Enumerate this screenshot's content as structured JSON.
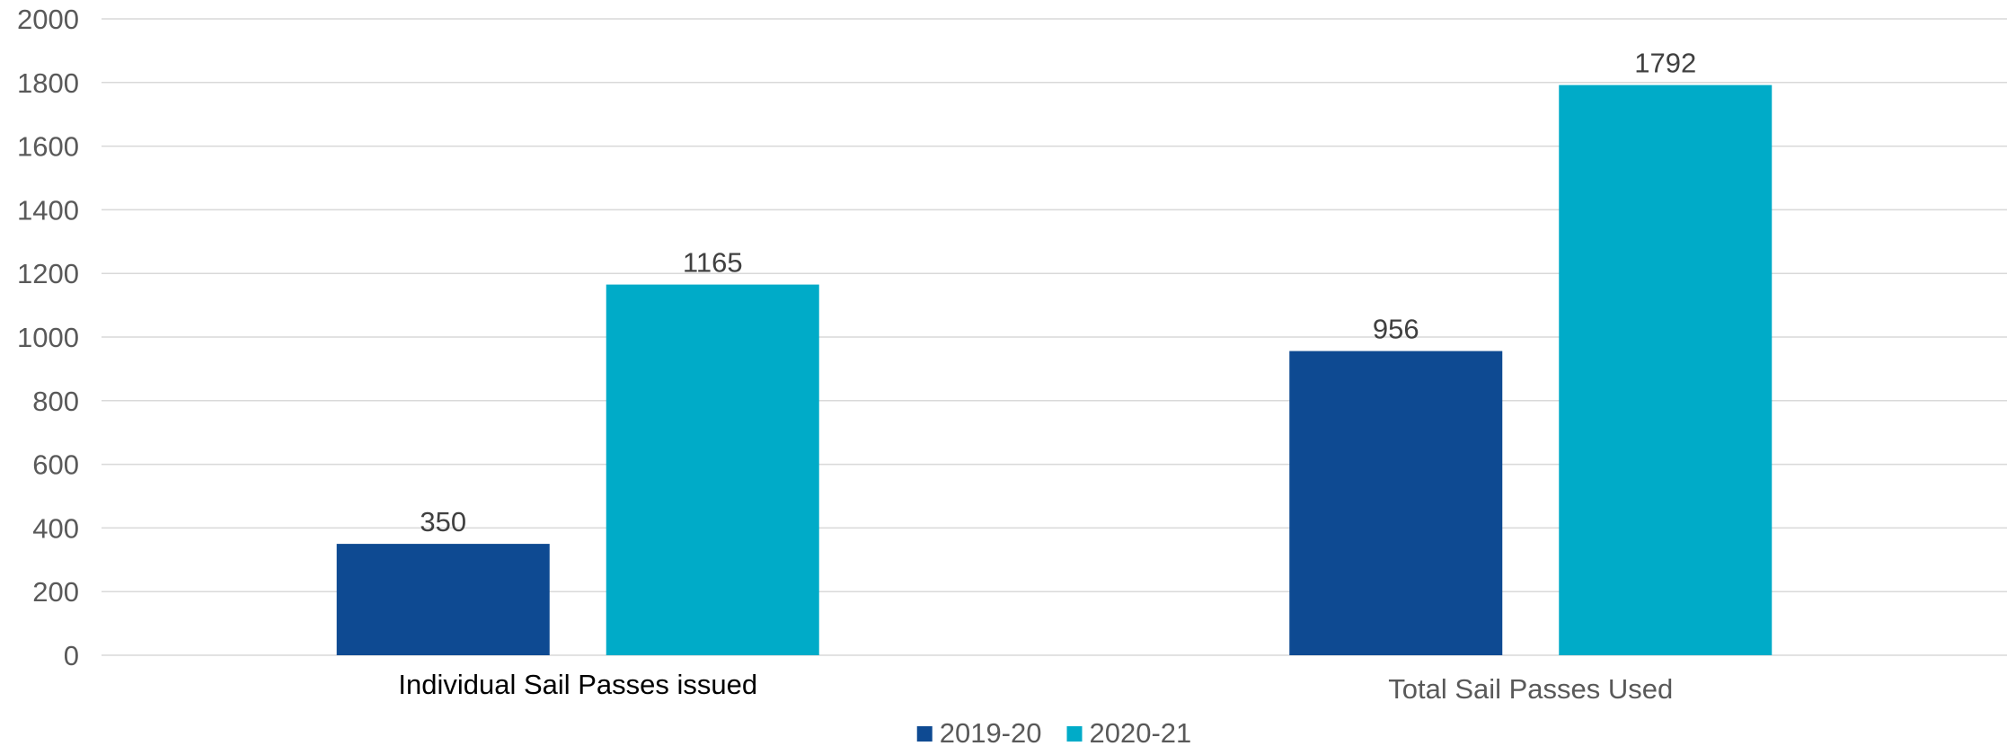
{
  "chart_data": {
    "type": "bar",
    "categories": [
      "Individual Sail Passes issued",
      "Total Sail Passes Used"
    ],
    "category_colors": [
      "#000000",
      "#595959"
    ],
    "series": [
      {
        "name": "2019-20",
        "color": "#0E4A92",
        "values": [
          350,
          956
        ]
      },
      {
        "name": "2020-21",
        "color": "#00ABC8",
        "values": [
          1165,
          1792
        ]
      }
    ],
    "ylim": [
      0,
      2000
    ],
    "yticks": [
      0,
      200,
      400,
      600,
      800,
      1000,
      1200,
      1400,
      1600,
      1800,
      2000
    ],
    "grid": true,
    "gridline_color": "#D9D9D9",
    "legend_position": "bottom",
    "data_labels": true,
    "title": "",
    "xlabel": "",
    "ylabel": ""
  }
}
